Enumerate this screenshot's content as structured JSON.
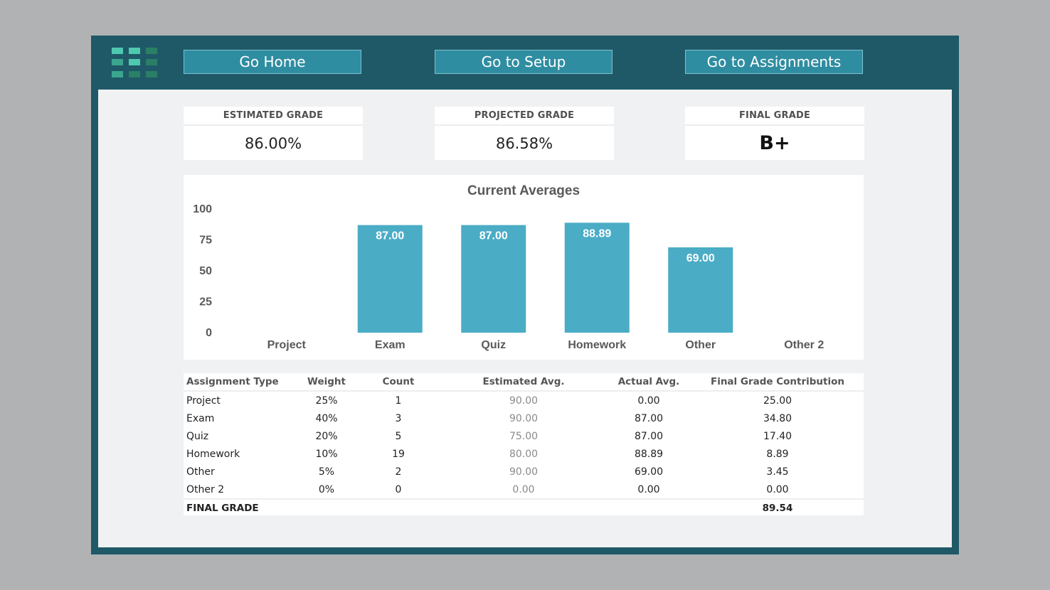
{
  "colors": {
    "background": "#b1b2b4",
    "frame": "#1f5967",
    "panel": "#f0f1f2",
    "button": "#2f8da1",
    "bar": "#4bacc6",
    "logo": [
      "#4fc8b0",
      "#3aa68e",
      "#2a7f66"
    ]
  },
  "logo": {
    "icon": "grid-logo-icon"
  },
  "nav": {
    "home": "Go Home",
    "setup": "Go to Setup",
    "assignments": "Go to Assignments"
  },
  "cards": {
    "estimated": {
      "label": "ESTIMATED GRADE",
      "value": "86.00%"
    },
    "projected": {
      "label": "PROJECTED GRADE",
      "value": "86.58%"
    },
    "final": {
      "label": "FINAL GRADE",
      "value": "B+"
    }
  },
  "chart_data": {
    "type": "bar",
    "title": "Current Averages",
    "categories": [
      "Project",
      "Exam",
      "Quiz",
      "Homework",
      "Other",
      "Other 2"
    ],
    "values": [
      0,
      87.0,
      87.0,
      88.89,
      69.0,
      0
    ],
    "data_labels": [
      "",
      "87.00",
      "87.00",
      "88.89",
      "69.00",
      ""
    ],
    "yticks": [
      "100",
      "75",
      "50",
      "25",
      "0"
    ],
    "ylim": [
      0,
      100
    ],
    "grid": false,
    "legend": "none"
  },
  "table": {
    "headers": [
      "Assignment Type",
      "Weight",
      "Count",
      "Estimated Avg.",
      "Actual Avg.",
      "Final Grade Contribution"
    ],
    "rows": [
      [
        "Project",
        "25%",
        "1",
        "90.00",
        "0.00",
        "25.00"
      ],
      [
        "Exam",
        "40%",
        "3",
        "90.00",
        "87.00",
        "34.80"
      ],
      [
        "Quiz",
        "20%",
        "5",
        "75.00",
        "87.00",
        "17.40"
      ],
      [
        "Homework",
        "10%",
        "19",
        "80.00",
        "88.89",
        "8.89"
      ],
      [
        "Other",
        "5%",
        "2",
        "90.00",
        "69.00",
        "3.45"
      ],
      [
        "Other 2",
        "0%",
        "0",
        "0.00",
        "0.00",
        "0.00"
      ]
    ],
    "final_label": "FINAL GRADE",
    "final_value": "89.54"
  }
}
